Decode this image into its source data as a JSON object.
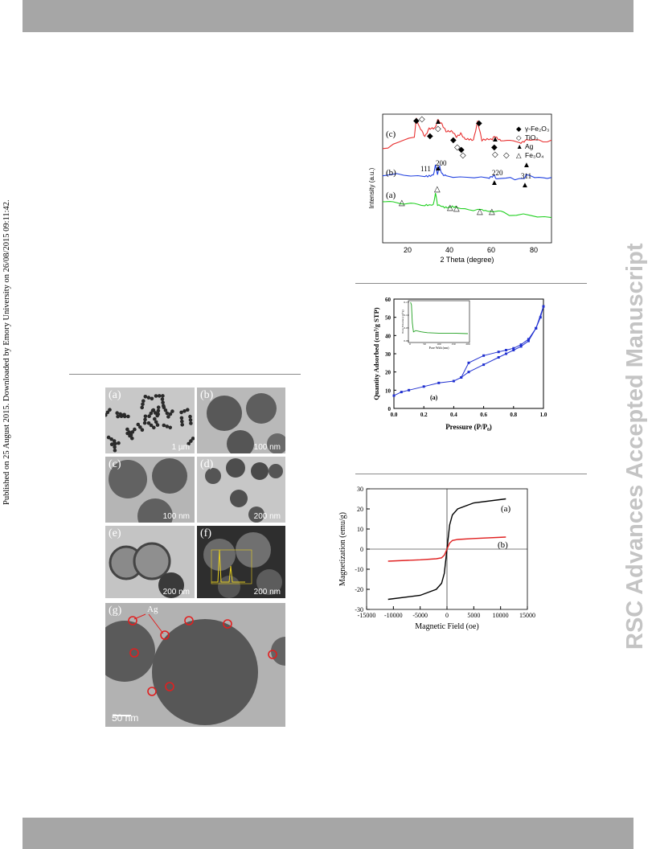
{
  "page": {
    "side_note": "Published on 25 August 2015. Downloaded by Emory University on 26/08/2015 09:11:42.",
    "watermark": "RSC Advances Accepted Manuscript"
  },
  "xrd": {
    "curve_labels": [
      "(c)",
      "(b)",
      "(a)"
    ],
    "ylabel": "Intensity (a.u.)",
    "xlabel": "2 Theta (degree)",
    "xticks": [
      "20",
      "40",
      "60",
      "80"
    ],
    "peak_labels": [
      "111",
      "200",
      "220",
      "311"
    ],
    "legend": [
      "γ-Fe₂O₃",
      "TiO₂",
      "Ag",
      "Fe₃O₄"
    ]
  },
  "bet": {
    "ylabel": "Quantity Adsorbed (cm³/g STP)",
    "xlabel": "Pressure (P/P₀)",
    "xticks": [
      "0.0",
      "0.2",
      "0.4",
      "0.6",
      "0.8",
      "1.0"
    ],
    "yticks": [
      "0",
      "10",
      "20",
      "30",
      "40",
      "50",
      "60"
    ],
    "curve_label": "(a)",
    "inset": {
      "ylabel": "Pore Volume (cm³/g)",
      "xlabel": "Pore With (nm)",
      "xticks": [
        "0",
        "50",
        "100",
        "150",
        "200"
      ],
      "yticks": [
        "0.00",
        "0.05",
        "0.10",
        "0.15"
      ]
    }
  },
  "mag": {
    "ylabel": "Magnetization (emu/g)",
    "xlabel": "Magnetic Field (oe)",
    "xticks": [
      "-15000",
      "-10000",
      "-5000",
      "0",
      "5000",
      "10000",
      "15000"
    ],
    "yticks": [
      "30",
      "20",
      "10",
      "0",
      "-10",
      "-20",
      "-30"
    ],
    "curve_labels": [
      "(a)",
      "(b)"
    ],
    "colors": {
      "a": "#000000",
      "b": "#e02020"
    }
  },
  "tem": {
    "panels": [
      {
        "label": "(a)",
        "scale": "1 µm"
      },
      {
        "label": "(b)",
        "scale": "100 nm"
      },
      {
        "label": "(c)",
        "scale": "100 nm"
      },
      {
        "label": "(d)",
        "scale": "200 nm"
      },
      {
        "label": "(e)",
        "scale": "200 nm"
      },
      {
        "label": "(f)",
        "scale": "200 nm"
      },
      {
        "label": "(g)",
        "scale": "50 nm"
      }
    ],
    "ag_label": "Ag"
  },
  "chart_data": [
    {
      "type": "line",
      "ylabel": "Intensity (a.u.)",
      "xlabel": "2 Theta (degree)",
      "xlim": [
        10,
        90
      ],
      "series": [
        {
          "name": "(c)",
          "color": "#e83030",
          "x": [
            10,
            25,
            26,
            27,
            30,
            32,
            35,
            36,
            38,
            40,
            43,
            45,
            47,
            49,
            53,
            55,
            57,
            62,
            63,
            66,
            75,
            78,
            90
          ],
          "y": [
            0.73,
            0.83,
            0.97,
            0.91,
            0.82,
            0.89,
            0.9,
            0.96,
            0.92,
            0.86,
            0.87,
            0.83,
            0.85,
            0.8,
            0.8,
            0.95,
            0.8,
            0.8,
            0.83,
            0.8,
            0.78,
            0.8,
            0.79
          ]
        },
        {
          "name": "(b)",
          "color": "#2040e0",
          "x": [
            10,
            30,
            34,
            35,
            36,
            37,
            38,
            40,
            60,
            63,
            64,
            77,
            78,
            90
          ],
          "y": [
            0.53,
            0.52,
            0.53,
            0.6,
            0.53,
            0.59,
            0.53,
            0.52,
            0.5,
            0.53,
            0.5,
            0.5,
            0.52,
            0.5
          ]
        },
        {
          "name": "(a)",
          "color": "#20d020",
          "x": [
            10,
            20,
            30,
            34,
            35,
            36,
            40,
            43,
            45,
            57,
            62,
            70,
            90
          ],
          "y": [
            0.33,
            0.3,
            0.3,
            0.29,
            0.38,
            0.29,
            0.28,
            0.28,
            0.27,
            0.25,
            0.25,
            0.22,
            0.2
          ]
        }
      ]
    },
    {
      "type": "line",
      "ylabel": "Quantity Adsorbed (cm³/g STP)",
      "xlabel": "Pressure (P/P₀)",
      "xlim": [
        0,
        1
      ],
      "ylim": [
        0,
        60
      ],
      "series": [
        {
          "name": "(a)",
          "x": [
            0.0,
            0.05,
            0.1,
            0.2,
            0.3,
            0.4,
            0.45,
            0.5,
            0.6,
            0.7,
            0.75,
            0.8,
            0.85,
            0.9,
            0.95,
            0.98,
            1.0
          ],
          "y": [
            7,
            9,
            10,
            12,
            14,
            15,
            17,
            20,
            24,
            28,
            30,
            32,
            34,
            37,
            44,
            50,
            56
          ]
        },
        {
          "name": "desorption",
          "x": [
            1.0,
            0.95,
            0.9,
            0.85,
            0.8,
            0.75,
            0.7,
            0.6,
            0.5,
            0.45
          ],
          "y": [
            56,
            44,
            38,
            35,
            33,
            32,
            31,
            29,
            25,
            17
          ]
        }
      ]
    },
    {
      "type": "line",
      "ylabel": "Pore Volume (cm³/g)",
      "xlabel": "Pore With (nm)",
      "xlim": [
        0,
        200
      ],
      "ylim": [
        0,
        0.15
      ],
      "series": [
        {
          "name": "pore size distribution",
          "x": [
            2,
            5,
            8,
            12,
            20,
            40,
            60,
            100,
            150,
            200
          ],
          "y": [
            0.15,
            0.14,
            0.07,
            0.035,
            0.04,
            0.035,
            0.032,
            0.03,
            0.03,
            0.028
          ]
        }
      ]
    },
    {
      "type": "line",
      "ylabel": "Magnetization (emu/g)",
      "xlabel": "Magnetic Field (oe)",
      "xlim": [
        -15000,
        15000
      ],
      "ylim": [
        -30,
        30
      ],
      "series": [
        {
          "name": "(a)",
          "x": [
            -11000,
            -5000,
            -2000,
            -1000,
            -500,
            0,
            500,
            1000,
            2000,
            5000,
            11000
          ],
          "y": [
            -25,
            -23,
            -20,
            -17,
            -12,
            0,
            12,
            17,
            20,
            23,
            25
          ]
        },
        {
          "name": "(b)",
          "x": [
            -11000,
            -5000,
            -2000,
            -1000,
            -500,
            0,
            500,
            1000,
            2000,
            5000,
            11000
          ],
          "y": [
            -6,
            -5.3,
            -4.8,
            -4.3,
            -3,
            0,
            3,
            4.3,
            4.8,
            5.3,
            6
          ]
        }
      ]
    }
  ]
}
